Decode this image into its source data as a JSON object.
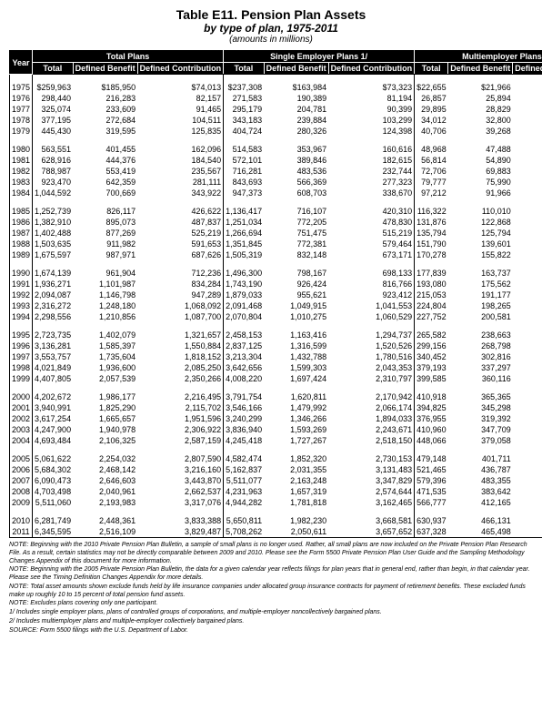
{
  "title": {
    "main": "Table E11. Pension Plan Assets",
    "sub": "by type of plan, 1975-2011",
    "units": "(amounts in millions)"
  },
  "headers": {
    "year": "Year",
    "groups": [
      "Total Plans",
      "Single Employer Plans 1/",
      "Multiemployer Plans 2/"
    ],
    "sub": [
      "Total",
      "Defined Benefit",
      "Defined Contribution"
    ]
  },
  "rows": [
    {
      "y": "1975",
      "c": [
        "$259,963",
        "$185,950",
        "$74,013",
        "$237,308",
        "$163,984",
        "$73,323",
        "$22,655",
        "$21,966",
        "$687"
      ]
    },
    {
      "y": "1976",
      "c": [
        "298,440",
        "216,283",
        "82,157",
        "271,583",
        "190,389",
        "81,194",
        "26,857",
        "25,894",
        "963"
      ]
    },
    {
      "y": "1977",
      "c": [
        "325,074",
        "233,609",
        "91,465",
        "295,179",
        "204,781",
        "90,399",
        "29,895",
        "28,829",
        "1,066"
      ]
    },
    {
      "y": "1978",
      "c": [
        "377,195",
        "272,684",
        "104,511",
        "343,183",
        "239,884",
        "103,299",
        "34,012",
        "32,800",
        "1,211"
      ]
    },
    {
      "y": "1979",
      "c": [
        "445,430",
        "319,595",
        "125,835",
        "404,724",
        "280,326",
        "124,398",
        "40,706",
        "39,268",
        "1,437"
      ]
    },
    {
      "y": "1980",
      "c": [
        "563,551",
        "401,455",
        "162,096",
        "514,583",
        "353,967",
        "160,616",
        "48,968",
        "47,488",
        "1,480"
      ]
    },
    {
      "y": "1981",
      "c": [
        "628,916",
        "444,376",
        "184,540",
        "572,101",
        "389,846",
        "182,615",
        "56,814",
        "54,890",
        "1,924"
      ]
    },
    {
      "y": "1982",
      "c": [
        "788,987",
        "553,419",
        "235,567",
        "716,281",
        "483,536",
        "232,744",
        "72,706",
        "69,883",
        "2,823"
      ]
    },
    {
      "y": "1983",
      "c": [
        "923,470",
        "642,359",
        "281,111",
        "843,693",
        "566,369",
        "277,323",
        "79,777",
        "75,990",
        "3,788"
      ]
    },
    {
      "y": "1984",
      "c": [
        "1,044,592",
        "700,669",
        "343,922",
        "947,373",
        "608,703",
        "338,670",
        "97,212",
        "91,966",
        "5,246"
      ]
    },
    {
      "y": "1985",
      "c": [
        "1,252,739",
        "826,117",
        "426,622",
        "1,136,417",
        "716,107",
        "420,310",
        "116,322",
        "110,010",
        "6,312"
      ]
    },
    {
      "y": "1986",
      "c": [
        "1,382,910",
        "895,073",
        "487,837",
        "1,251,034",
        "772,205",
        "478,830",
        "131,876",
        "122,868",
        "9,008"
      ]
    },
    {
      "y": "1987",
      "c": [
        "1,402,488",
        "877,269",
        "525,219",
        "1,266,694",
        "751,475",
        "515,219",
        "135,794",
        "125,794",
        "10,000"
      ]
    },
    {
      "y": "1988",
      "c": [
        "1,503,635",
        "911,982",
        "591,653",
        "1,351,845",
        "772,381",
        "579,464",
        "151,790",
        "139,601",
        "12,189"
      ]
    },
    {
      "y": "1989",
      "c": [
        "1,675,597",
        "987,971",
        "687,626",
        "1,505,319",
        "832,148",
        "673,171",
        "170,278",
        "155,822",
        "14,455"
      ]
    },
    {
      "y": "1990",
      "c": [
        "1,674,139",
        "961,904",
        "712,236",
        "1,496,300",
        "798,167",
        "698,133",
        "177,839",
        "163,737",
        "14,102"
      ]
    },
    {
      "y": "1991",
      "c": [
        "1,936,271",
        "1,101,987",
        "834,284",
        "1,743,190",
        "926,424",
        "816,766",
        "193,080",
        "175,562",
        "17,518"
      ]
    },
    {
      "y": "1992",
      "c": [
        "2,094,087",
        "1,146,798",
        "947,289",
        "1,879,033",
        "955,621",
        "923,412",
        "215,053",
        "191,177",
        "23,877"
      ]
    },
    {
      "y": "1993",
      "c": [
        "2,316,272",
        "1,248,180",
        "1,068,092",
        "2,091,468",
        "1,049,915",
        "1,041,553",
        "224,804",
        "198,265",
        "26,540"
      ]
    },
    {
      "y": "1994",
      "c": [
        "2,298,556",
        "1,210,856",
        "1,087,700",
        "2,070,804",
        "1,010,275",
        "1,060,529",
        "227,752",
        "200,581",
        "27,171"
      ]
    },
    {
      "y": "1995",
      "c": [
        "2,723,735",
        "1,402,079",
        "1,321,657",
        "2,458,153",
        "1,163,416",
        "1,294,737",
        "265,582",
        "238,663",
        "26,920"
      ]
    },
    {
      "y": "1996",
      "c": [
        "3,136,281",
        "1,585,397",
        "1,550,884",
        "2,837,125",
        "1,316,599",
        "1,520,526",
        "299,156",
        "268,798",
        "30,358"
      ]
    },
    {
      "y": "1997",
      "c": [
        "3,553,757",
        "1,735,604",
        "1,818,152",
        "3,213,304",
        "1,432,788",
        "1,780,516",
        "340,452",
        "302,816",
        "37,636"
      ]
    },
    {
      "y": "1998",
      "c": [
        "4,021,849",
        "1,936,600",
        "2,085,250",
        "3,642,656",
        "1,599,303",
        "2,043,353",
        "379,193",
        "337,297",
        "41,896"
      ]
    },
    {
      "y": "1999",
      "c": [
        "4,407,805",
        "2,057,539",
        "2,350,266",
        "4,008,220",
        "1,697,424",
        "2,310,797",
        "399,585",
        "360,116",
        "39,470"
      ]
    },
    {
      "y": "2000",
      "c": [
        "4,202,672",
        "1,986,177",
        "2,216,495",
        "3,791,754",
        "1,620,811",
        "2,170,942",
        "410,918",
        "365,365",
        "45,553"
      ]
    },
    {
      "y": "2001",
      "c": [
        "3,940,991",
        "1,825,290",
        "2,115,702",
        "3,546,166",
        "1,479,992",
        "2,066,174",
        "394,825",
        "345,298",
        "49,527"
      ]
    },
    {
      "y": "2002",
      "c": [
        "3,617,254",
        "1,665,657",
        "1,951,596",
        "3,240,299",
        "1,346,266",
        "1,894,033",
        "376,955",
        "319,392",
        "57,563"
      ]
    },
    {
      "y": "2003",
      "c": [
        "4,247,900",
        "1,940,978",
        "2,306,922",
        "3,836,940",
        "1,593,269",
        "2,243,671",
        "410,960",
        "347,709",
        "63,250"
      ]
    },
    {
      "y": "2004",
      "c": [
        "4,693,484",
        "2,106,325",
        "2,587,159",
        "4,245,418",
        "1,727,267",
        "2,518,150",
        "448,066",
        "379,058",
        "69,008"
      ]
    },
    {
      "y": "2005",
      "c": [
        "5,061,622",
        "2,254,032",
        "2,807,590",
        "4,582,474",
        "1,852,320",
        "2,730,153",
        "479,148",
        "401,711",
        "77,437"
      ]
    },
    {
      "y": "2006",
      "c": [
        "5,684,302",
        "2,468,142",
        "3,216,160",
        "5,162,837",
        "2,031,355",
        "3,131,483",
        "521,465",
        "436,787",
        "84,678"
      ]
    },
    {
      "y": "2007",
      "c": [
        "6,090,473",
        "2,646,603",
        "3,443,870",
        "5,511,077",
        "2,163,248",
        "3,347,829",
        "579,396",
        "483,355",
        "96,041"
      ]
    },
    {
      "y": "2008",
      "c": [
        "4,703,498",
        "2,040,961",
        "2,662,537",
        "4,231,963",
        "1,657,319",
        "2,574,644",
        "471,535",
        "383,642",
        "87,893"
      ]
    },
    {
      "y": "2009",
      "c": [
        "5,511,060",
        "2,193,983",
        "3,317,076",
        "4,944,282",
        "1,781,818",
        "3,162,465",
        "566,777",
        "412,165",
        "154,612"
      ]
    },
    {
      "y": "2010",
      "c": [
        "6,281,749",
        "2,448,361",
        "3,833,388",
        "5,650,811",
        "1,982,230",
        "3,668,581",
        "630,937",
        "466,131",
        "164,806"
      ]
    },
    {
      "y": "2011",
      "c": [
        "6,345,595",
        "2,516,109",
        "3,829,487",
        "5,708,262",
        "2,050,611",
        "3,657,652",
        "637,328",
        "465,498",
        "171,831"
      ]
    }
  ],
  "blocks": [
    [
      0,
      4
    ],
    [
      5,
      9
    ],
    [
      10,
      14
    ],
    [
      15,
      19
    ],
    [
      20,
      24
    ],
    [
      25,
      29
    ],
    [
      30,
      34
    ],
    [
      35,
      36
    ]
  ],
  "notes": [
    "NOTE: Beginning with the 2010 Private Pension Plan Bulletin, a sample of small plans is no longer used. Rather, all small plans are now included on the Private Pension Plan Research File. As a result, certain statistics may not be directly comparable between 2009 and 2010. Please see the Form 5500 Private Pension Plan User Guide and the Sampling Methodology Changes Appendix of this document for more information.",
    "NOTE: Beginning with the 2005 Private Pension Plan Bulletin, the data for a given calendar year reflects filings for plan years that in general end, rather than begin, in that calendar year. Please see the Timing Definition Changes Appendix for more details.",
    "NOTE: Total asset amounts shown exclude funds held by life insurance companies under allocated group insurance contracts for payment of retirement benefits. These excluded funds make up roughly 10 to 15 percent of total pension fund assets.",
    "NOTE: Excludes plans covering only one participant.",
    "1/ Includes single employer plans, plans of controlled groups of corporations, and multiple-employer noncollectively bargained plans.",
    "2/ Includes multiemployer plans and multiple-employer collectively bargained plans.",
    "SOURCE: Form 5500 filings with the U.S. Department of Labor."
  ]
}
